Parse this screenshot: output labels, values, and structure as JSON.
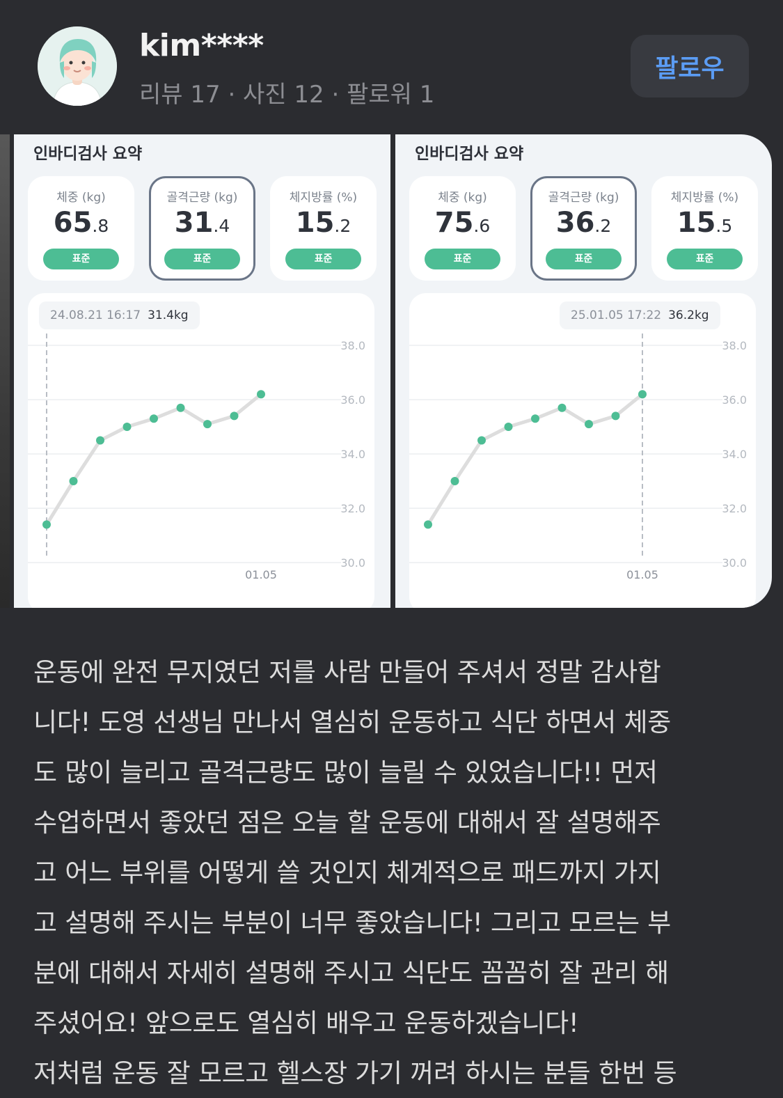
{
  "profile": {
    "username": "kim****",
    "stats": "리뷰 17 · 사진 12 · 팔로워 1",
    "follow_label": "팔로우"
  },
  "cards": [
    {
      "title": "인바디검사 요약",
      "metrics": [
        {
          "label": "체중 (kg)",
          "int": "65",
          "dec": ".8",
          "badge": "표준"
        },
        {
          "label": "골격근량 (kg)",
          "int": "31",
          "dec": ".4",
          "badge": "표준"
        },
        {
          "label": "체지방률 (%)",
          "int": "15",
          "dec": ".2",
          "badge": "표준"
        }
      ],
      "tooltip_date": "24.08.21 16:17",
      "tooltip_value": "31.4kg"
    },
    {
      "title": "인바디검사 요약",
      "metrics": [
        {
          "label": "체중 (kg)",
          "int": "75",
          "dec": ".6",
          "badge": "표준"
        },
        {
          "label": "골격근량 (kg)",
          "int": "36",
          "dec": ".2",
          "badge": "표준"
        },
        {
          "label": "체지방률 (%)",
          "int": "15",
          "dec": ".5",
          "badge": "표준"
        }
      ],
      "tooltip_date": "25.01.05 17:22",
      "tooltip_value": "36.2kg"
    }
  ],
  "chart_data": [
    {
      "type": "line",
      "x": [
        1,
        2,
        3,
        4,
        5,
        6,
        7,
        8,
        9
      ],
      "y": [
        31.4,
        33.0,
        34.5,
        35.0,
        35.3,
        35.7,
        35.1,
        35.4,
        36.2
      ],
      "x_tick_labels": [
        {
          "x": 9,
          "label": "01.05"
        }
      ],
      "y_ticks": [
        "38.0",
        "36.0",
        "34.0",
        "32.0",
        "30.0"
      ],
      "ylim": [
        30,
        38
      ],
      "selected_index": 0,
      "point_color": "#4dbd94",
      "line_color": "#dddddd",
      "grid": true
    },
    {
      "type": "line",
      "x": [
        1,
        2,
        3,
        4,
        5,
        6,
        7,
        8,
        9
      ],
      "y": [
        31.4,
        33.0,
        34.5,
        35.0,
        35.3,
        35.7,
        35.1,
        35.4,
        36.2
      ],
      "x_tick_labels": [
        {
          "x": 9,
          "label": "01.05"
        }
      ],
      "y_ticks": [
        "38.0",
        "36.0",
        "34.0",
        "32.0",
        "30.0"
      ],
      "ylim": [
        30,
        38
      ],
      "selected_index": 8,
      "point_color": "#4dbd94",
      "line_color": "#dddddd",
      "grid": true
    }
  ],
  "review": {
    "lines": [
      "운동에 완전 무지였던 저를 사람 만들어 주셔서 정말 감사합",
      "니다! 도영 선생님 만나서 열심히 운동하고 식단 하면서 체중",
      "도 많이 늘리고 골격근량도 많이 늘릴 수 있었습니다!! 먼저",
      "수업하면서 좋았던 점은 오늘 할 운동에 대해서 잘 설명해주",
      "고 어느 부위를 어떻게 쓸 것인지 체계적으로 패드까지 가지",
      "고 설명해 주시는 부분이 너무 좋았습니다! 그리고 모르는 부",
      "분에 대해서 자세히 설명해 주시고 식단도 꼼꼼히 잘 관리 해",
      "주셨어요! 앞으로도 열심히 배우고 운동하겠습니다!",
      "저처럼 운동 잘 모르고 헬스장 가기 꺼려 하시는 분들 한번 등"
    ]
  }
}
